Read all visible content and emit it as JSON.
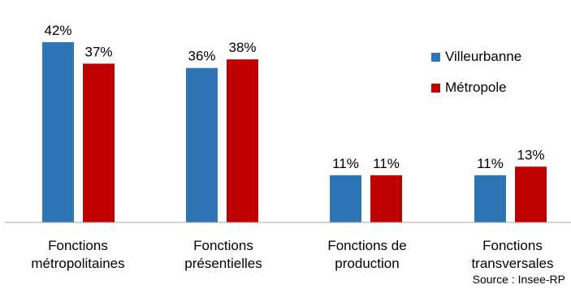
{
  "chart_data": {
    "type": "bar",
    "categories": [
      "Fonctions\nmétropolitaines",
      "Fonctions\nprésentielles",
      "Fonctions de\nproduction",
      "Fonctions\ntransversales"
    ],
    "series": [
      {
        "name": "Villeurbanne",
        "color": "#2e75b6",
        "values": [
          42,
          36,
          11,
          11
        ],
        "labels": [
          "42%",
          "36%",
          "11%",
          "11%"
        ]
      },
      {
        "name": "Métropole",
        "color": "#c00000",
        "values": [
          37,
          38,
          11,
          13
        ],
        "labels": [
          "37%",
          "38%",
          "11%",
          "13%"
        ]
      }
    ],
    "ylim": [
      0,
      45
    ],
    "grid": false,
    "legend": "right"
  },
  "source": "Source : Insee-RP"
}
